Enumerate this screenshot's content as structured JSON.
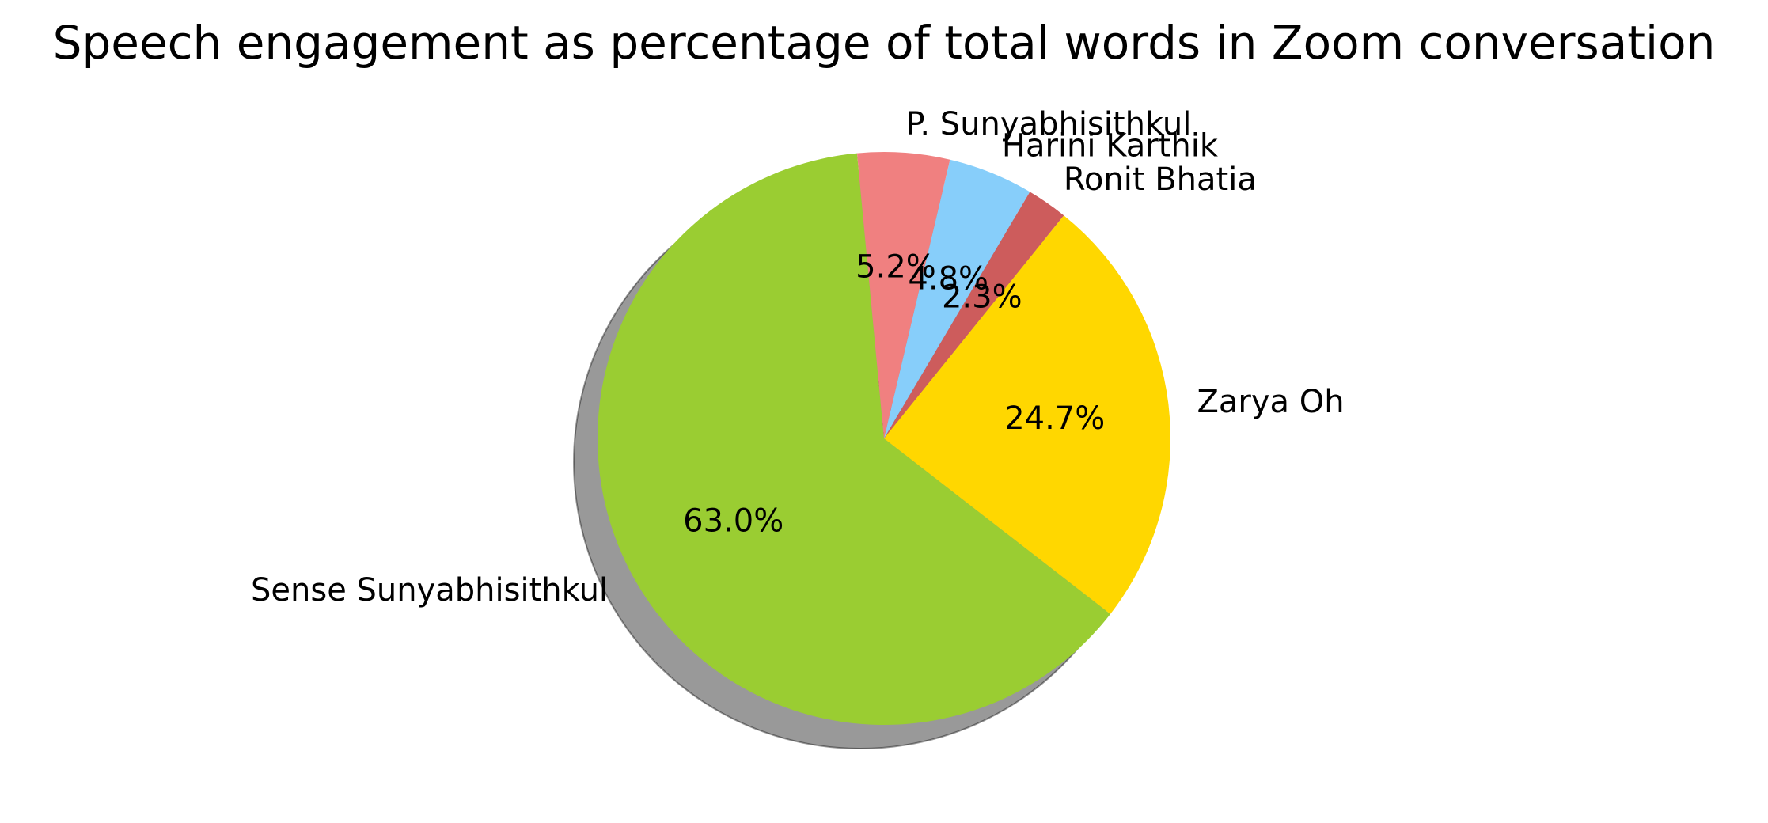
{
  "chart_data": {
    "type": "pie",
    "title": "Speech engagement as percentage of total words in Zoom conversation",
    "shadow": true,
    "start_angle_deg": 95.4,
    "direction": "counterclockwise",
    "slices": [
      {
        "label": "Sense Sunyabhisithkul",
        "value": 63.0,
        "pct_label": "63.0%",
        "color": "#9ACD32"
      },
      {
        "label": "Zarya Oh",
        "value": 24.7,
        "pct_label": "24.7%",
        "color": "#FFD700"
      },
      {
        "label": "Ronit Bhatia",
        "value": 2.3,
        "pct_label": "2.3%",
        "color": "#CD5C5C"
      },
      {
        "label": "Harini Karthik",
        "value": 4.8,
        "pct_label": "4.8%",
        "color": "#87CEFA"
      },
      {
        "label": "P. Sunyabhisithkul",
        "value": 5.2,
        "pct_label": "5.2%",
        "color": "#F08080"
      }
    ]
  }
}
